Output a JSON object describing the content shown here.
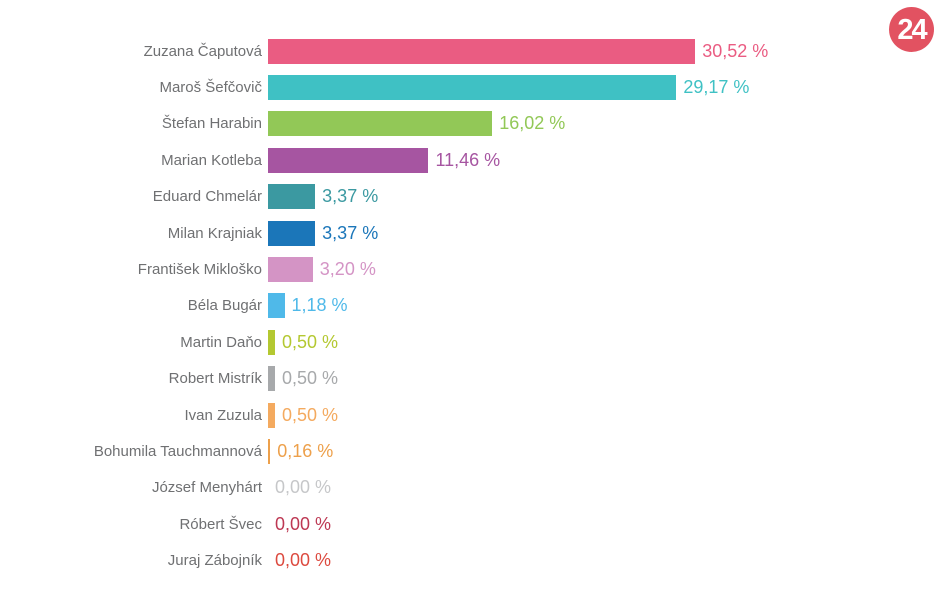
{
  "logo": {
    "text": "24",
    "bg_color": "#e25261",
    "text_color": "#ffffff"
  },
  "chart_data": {
    "type": "bar",
    "orientation": "horizontal",
    "title": "",
    "xlabel": "",
    "ylabel": "",
    "xlim": [
      0,
      32
    ],
    "grid": false,
    "legend": false,
    "categories": [
      "Zuzana Čaputová",
      "Maroš Šefčovič",
      "Štefan Harabin",
      "Marian Kotleba",
      "Eduard Chmelár",
      "Milan Krajniak",
      "František Mikloško",
      "Béla Bugár",
      "Martin Daňo",
      "Robert Mistrík",
      "Ivan Zuzula",
      "Bohumila Tauchmannová",
      "József Menyhárt",
      "Róbert Švec",
      "Juraj Zábojník"
    ],
    "values": [
      30.52,
      29.17,
      16.02,
      11.46,
      3.37,
      3.37,
      3.2,
      1.18,
      0.5,
      0.5,
      0.5,
      0.16,
      0.0,
      0.0,
      0.0
    ],
    "value_labels": [
      "30,52 %",
      "29,17 %",
      "16,02 %",
      "11,46 %",
      "3,37 %",
      "3,37 %",
      "3,20 %",
      "1,18 %",
      "0,50 %",
      "0,50 %",
      "0,50 %",
      "0,16 %",
      "0,00 %",
      "0,00 %",
      "0,00 %"
    ],
    "bar_colors": [
      "#ea5c82",
      "#3fc1c4",
      "#92c857",
      "#a655a1",
      "#3b99a1",
      "#1b76b9",
      "#d494c5",
      "#4fb9e9",
      "#b4c831",
      "#a7a9ab",
      "#f4aa5f",
      "#eda04b",
      "#c6c7c9",
      "#bd3853",
      "#dc4a3f"
    ],
    "label_color": "#6f7072"
  }
}
